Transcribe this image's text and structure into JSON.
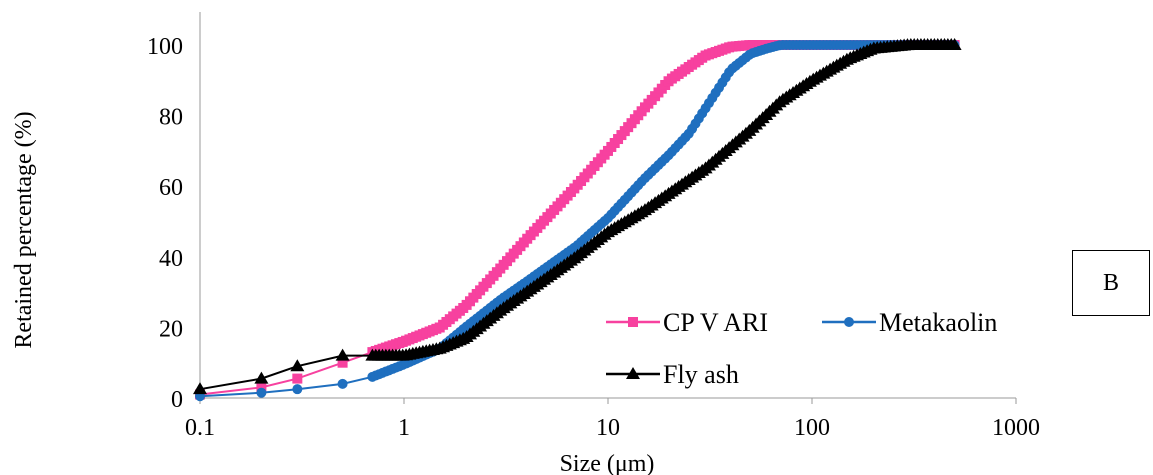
{
  "panel_tag": "B",
  "chart_data": {
    "type": "line",
    "title": "",
    "xlabel": "Size (μm)",
    "ylabel": "Retained percentage (%)",
    "x_scale": "log",
    "xlim": [
      0.1,
      1000
    ],
    "ylim": [
      0,
      100
    ],
    "x_ticks": [
      "0.1",
      "1",
      "10",
      "100",
      "1000"
    ],
    "y_ticks": [
      "0",
      "20",
      "40",
      "60",
      "80",
      "100"
    ],
    "grid": false,
    "legend": "bottom-right-inside",
    "series": [
      {
        "name": "CP V ARI",
        "color": "#f7419f",
        "marker": "square",
        "x": [
          0.1,
          0.2,
          0.3,
          0.5,
          0.7,
          1,
          1.5,
          2,
          3,
          4,
          5,
          7,
          10,
          15,
          20,
          30,
          40,
          50,
          100,
          200,
          500
        ],
        "y": [
          1,
          3,
          5.5,
          10,
          13,
          16,
          20,
          26,
          37,
          45,
          51,
          60,
          70,
          82,
          90,
          97,
          99.5,
          100,
          100,
          100,
          100
        ]
      },
      {
        "name": "Metakaolin",
        "color": "#1f6fbf",
        "marker": "circle",
        "x": [
          0.1,
          0.2,
          0.3,
          0.5,
          0.7,
          1,
          1.5,
          2,
          3,
          4,
          5,
          7,
          10,
          15,
          20,
          25,
          30,
          40,
          50,
          60,
          70,
          100,
          200,
          500
        ],
        "y": [
          0.5,
          1.5,
          2.5,
          4,
          6,
          9.5,
          14,
          20,
          28,
          33,
          37,
          43,
          51,
          62,
          69,
          75,
          82,
          93,
          97.5,
          99,
          100,
          100,
          100,
          100
        ]
      },
      {
        "name": "Fly ash",
        "color": "#000000",
        "marker": "triangle",
        "x": [
          0.1,
          0.2,
          0.3,
          0.5,
          0.7,
          1,
          1.5,
          2,
          3,
          5,
          7,
          10,
          15,
          20,
          30,
          50,
          70,
          100,
          150,
          200,
          300,
          500
        ],
        "y": [
          2.5,
          5.5,
          9,
          12,
          12,
          12,
          14,
          17,
          25,
          34,
          40,
          47,
          53,
          58,
          65,
          76,
          84,
          90,
          96,
          99,
          100,
          100
        ]
      }
    ]
  }
}
